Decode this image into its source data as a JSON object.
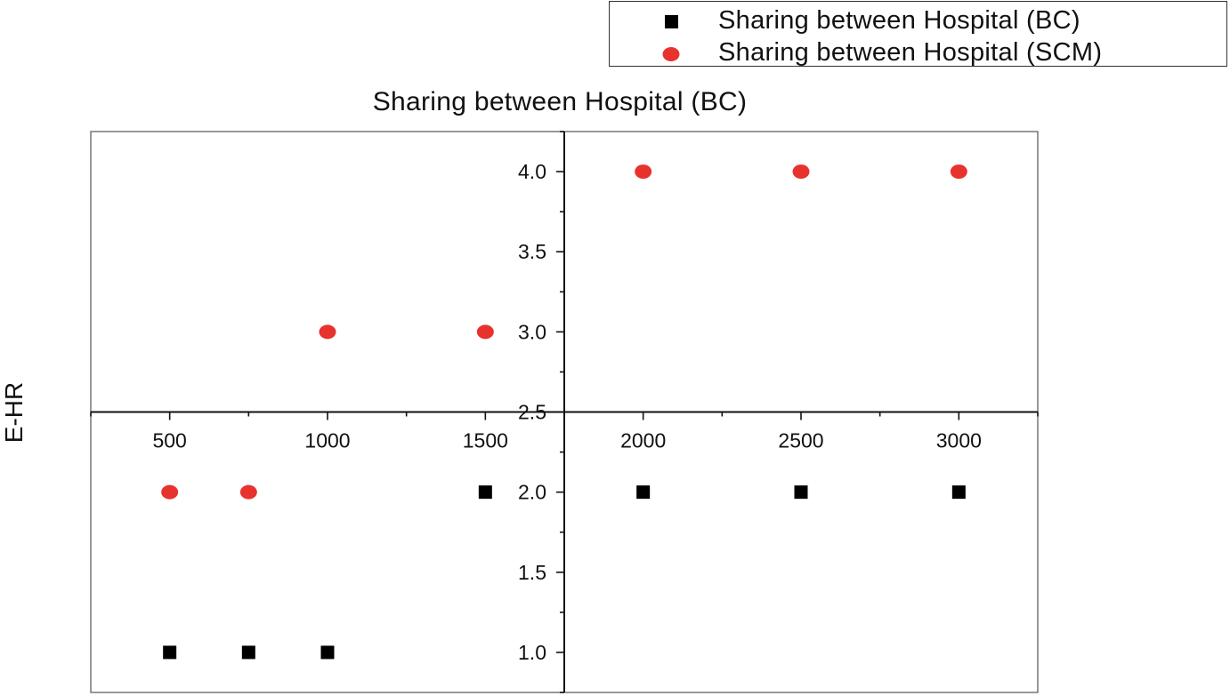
{
  "chart_data": {
    "type": "scatter",
    "title": "Sharing between Hospital (BC)",
    "xlabel": "",
    "ylabel": "E-HR",
    "xlim": [
      250,
      3250
    ],
    "ylim": [
      0.75,
      4.25
    ],
    "xticks": [
      500,
      1000,
      1500,
      2000,
      2500,
      3000
    ],
    "yticks": [
      1.0,
      1.5,
      2.0,
      2.5,
      3.0,
      3.5,
      4.0
    ],
    "x_axis_crosses_at_y": 2.5,
    "y_axis_crosses_at_x": 1750,
    "grid": false,
    "legend_position": "top-right",
    "series": [
      {
        "name": "Sharing between Hospital (BC)",
        "marker": "square",
        "color": "#000000",
        "x": [
          500,
          750,
          1000,
          1500,
          2000,
          2500,
          3000
        ],
        "y": [
          1,
          1,
          1,
          2,
          2,
          2,
          2
        ]
      },
      {
        "name": "Sharing between Hospital  (SCM)",
        "marker": "circle",
        "color": "#e8322d",
        "x": [
          500,
          750,
          1000,
          1500,
          2000,
          2500,
          3000
        ],
        "y": [
          2,
          2,
          3,
          3,
          4,
          4,
          4
        ]
      }
    ]
  }
}
